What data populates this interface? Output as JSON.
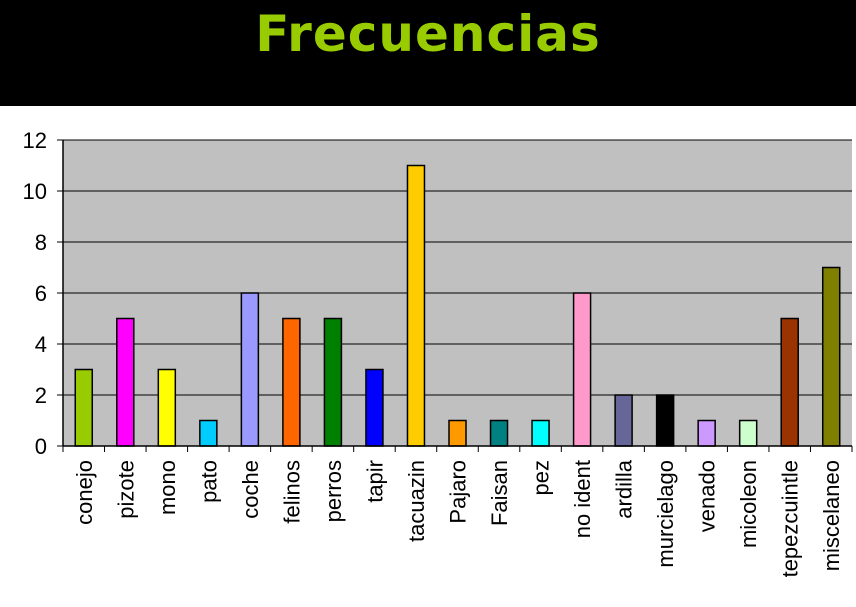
{
  "chart_data": {
    "type": "bar",
    "title": "Frecuencias",
    "categories": [
      "conejo",
      "pizote",
      "mono",
      "pato",
      "coche",
      "felinos",
      "perros",
      "tapir",
      "tacuazin",
      "Pajaro",
      "Faisan",
      "pez",
      "no ident",
      "ardilla",
      "murcielago",
      "venado",
      "micoleon",
      "tepezcuintle",
      "miscelaneo"
    ],
    "values": [
      3,
      5,
      3,
      1,
      6,
      5,
      5,
      3,
      11,
      1,
      1,
      1,
      6,
      2,
      2,
      1,
      1,
      5,
      7
    ],
    "colors": [
      "#99cc00",
      "#ff00ff",
      "#ffff00",
      "#00ccff",
      "#9999ff",
      "#ff6600",
      "#008000",
      "#0000ff",
      "#ffcc00",
      "#ff9900",
      "#008080",
      "#00ffff",
      "#ff99cc",
      "#666699",
      "#000000",
      "#cc99ff",
      "#ccffcc",
      "#993300",
      "#808000"
    ],
    "yticks": [
      0,
      2,
      4,
      6,
      8,
      10,
      12
    ],
    "ylim": [
      0,
      12
    ],
    "grid": true,
    "legend": "none",
    "plot_background": "#c0c0c0"
  }
}
